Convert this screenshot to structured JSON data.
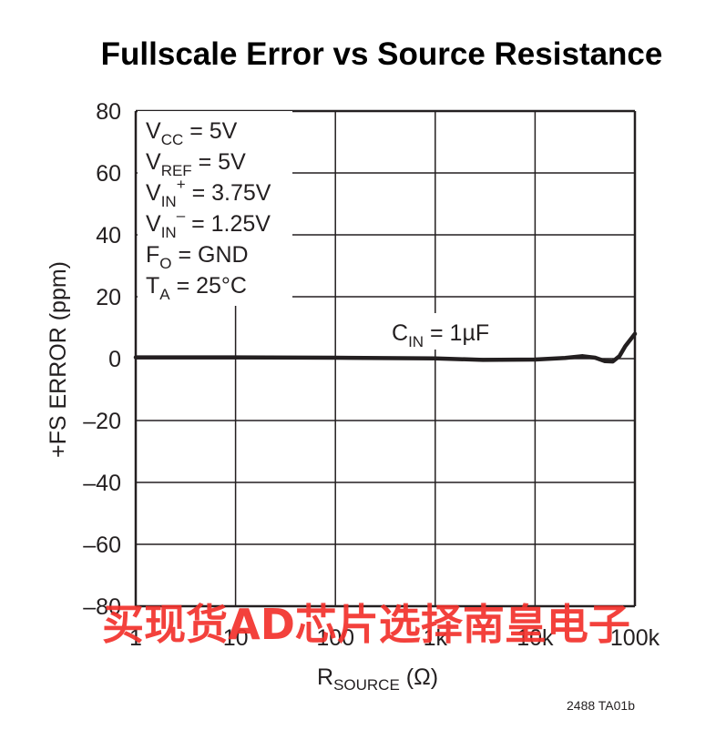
{
  "chart_data": {
    "type": "line",
    "title": "Fullscale Error vs Source Resistance",
    "xlabel": {
      "main": "R",
      "sub": "SOURCE",
      "suffix": " (Ω)"
    },
    "ylabel": "+FS ERROR (ppm)",
    "xscale": "log",
    "xlim": [
      1,
      100000
    ],
    "ylim": [
      -80,
      80
    ],
    "grid": true,
    "x_tick_values": [
      1,
      10,
      100,
      1000,
      10000,
      100000
    ],
    "x_tick_labels": [
      "1",
      "10",
      "100",
      "1k",
      "10k",
      "100k"
    ],
    "y_tick_values": [
      80,
      60,
      40,
      20,
      0,
      -20,
      -40,
      -60,
      -80
    ],
    "y_tick_labels": [
      "80",
      "60",
      "40",
      "20",
      "0",
      "–20",
      "–40",
      "–60",
      "–80"
    ],
    "conditions": [
      {
        "main": "V",
        "sub": "CC",
        "sup": "",
        "rest": " = 5V"
      },
      {
        "main": "V",
        "sub": "REF",
        "sup": "",
        "rest": " = 5V"
      },
      {
        "main": "V",
        "sub": "IN",
        "sup": "+",
        "rest": " = 3.75V"
      },
      {
        "main": "V",
        "sub": "IN",
        "sup": "–",
        "rest": " = 1.25V"
      },
      {
        "main": "F",
        "sub": "O",
        "sup": "",
        "rest": " = GND"
      },
      {
        "main": "T",
        "sub": "A",
        "sup": "",
        "rest": " = 25°C"
      }
    ],
    "series": [
      {
        "label": {
          "main": "C",
          "sub": "IN",
          "rest": " = 1µF"
        },
        "x": [
          1,
          10,
          100,
          1000,
          3000,
          10000,
          20000,
          30000,
          40000,
          50000,
          60000,
          70000,
          80000,
          100000
        ],
        "y": [
          0.4,
          0.4,
          0.3,
          0.1,
          -0.4,
          -0.3,
          0.2,
          0.8,
          0.3,
          -0.8,
          -0.9,
          0.8,
          4.0,
          8.0
        ]
      }
    ],
    "figure_code": "2488 TA01b"
  },
  "watermark": "买现货AD芯片选择南皇电子",
  "colors": {
    "ink": "#231f20",
    "grid": "#231f20",
    "watermark": "#f2312b"
  }
}
